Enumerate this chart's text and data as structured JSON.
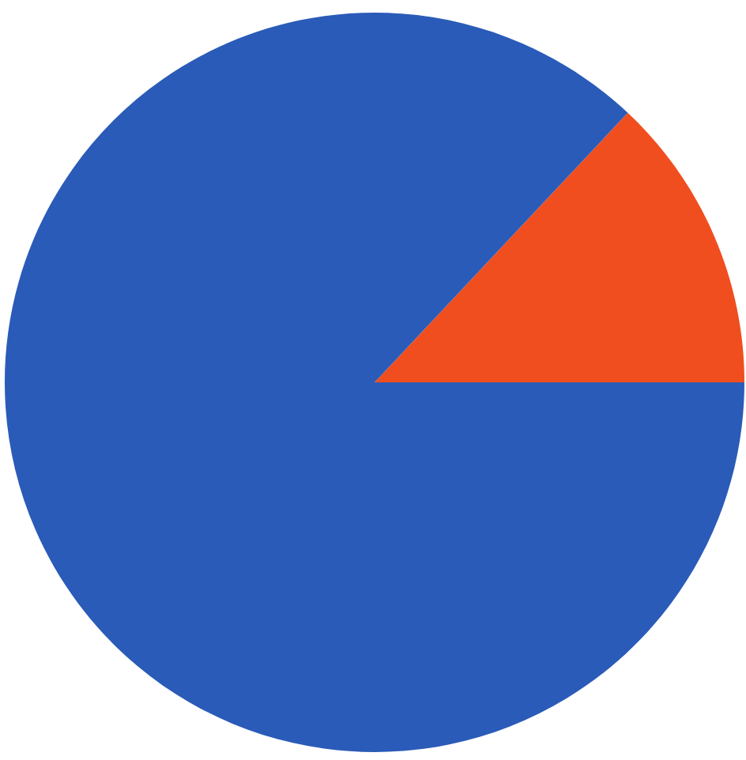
{
  "chart_data": {
    "type": "pie",
    "categories": [
      null,
      null
    ],
    "values": [
      13,
      87
    ],
    "colors": [
      "#f04e1e",
      "#2a5bb8"
    ]
  }
}
